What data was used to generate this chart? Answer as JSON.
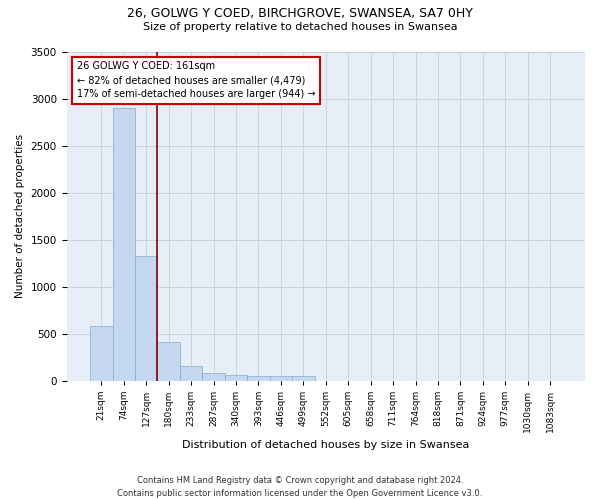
{
  "title_line1": "26, GOLWG Y COED, BIRCHGROVE, SWANSEA, SA7 0HY",
  "title_line2": "Size of property relative to detached houses in Swansea",
  "xlabel": "Distribution of detached houses by size in Swansea",
  "ylabel": "Number of detached properties",
  "footnote": "Contains HM Land Registry data © Crown copyright and database right 2024.\nContains public sector information licensed under the Open Government Licence v3.0.",
  "bin_labels": [
    "21sqm",
    "74sqm",
    "127sqm",
    "180sqm",
    "233sqm",
    "287sqm",
    "340sqm",
    "393sqm",
    "446sqm",
    "499sqm",
    "552sqm",
    "605sqm",
    "658sqm",
    "711sqm",
    "764sqm",
    "818sqm",
    "871sqm",
    "924sqm",
    "977sqm",
    "1030sqm",
    "1083sqm"
  ],
  "bar_heights": [
    580,
    2900,
    1320,
    415,
    150,
    80,
    60,
    50,
    45,
    45,
    0,
    0,
    0,
    0,
    0,
    0,
    0,
    0,
    0,
    0,
    0
  ],
  "bar_color": "#c5d8f0",
  "bar_edge_color": "#7aadd4",
  "grid_color": "#c8d4e0",
  "vline_x": 2.5,
  "vline_color": "#8b0000",
  "annotation_text": "26 GOLWG Y COED: 161sqm\n← 82% of detached houses are smaller (4,479)\n17% of semi-detached houses are larger (944) →",
  "annotation_box_color": "#cc0000",
  "ylim": [
    0,
    3500
  ],
  "yticks": [
    0,
    500,
    1000,
    1500,
    2000,
    2500,
    3000,
    3500
  ],
  "background_color": "#e8eef8",
  "fig_width": 6.0,
  "fig_height": 5.0,
  "dpi": 100
}
